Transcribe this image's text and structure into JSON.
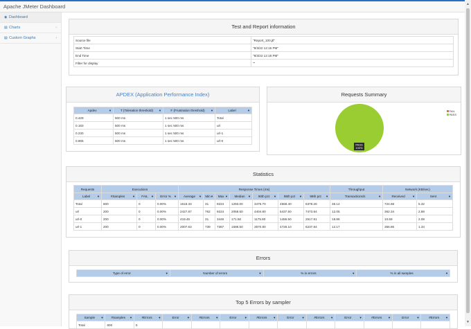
{
  "app": {
    "title": "Apache JMeter Dashboard"
  },
  "sidebar": {
    "items": [
      {
        "label": "Dashboard",
        "icon": "dashboard-icon"
      },
      {
        "label": "Charts",
        "icon": "bar-chart-icon"
      },
      {
        "label": "Custom Graphs",
        "icon": "bar-chart-icon"
      }
    ]
  },
  "info": {
    "title": "Test and Report information",
    "rows": [
      {
        "label": "Source file",
        "value": "\"Report_100.jtl\""
      },
      {
        "label": "Start Time",
        "value": "\"8/3/22 12:15 PM\""
      },
      {
        "label": "End Time",
        "value": "\"8/3/22 12:18 PM\""
      },
      {
        "label": "Filter for display",
        "value": "\"\""
      }
    ]
  },
  "apdex": {
    "title": "APDEX (Application Performance Index)",
    "headers": [
      "Apdex",
      "T (Toleration threshold)",
      "F (Frustration threshold)",
      "Label"
    ],
    "rows": [
      [
        "0.429",
        "500 ms",
        "1 sec 500 ms",
        "Total"
      ],
      [
        "0.183",
        "500 ms",
        "1 sec 500 ms",
        "url"
      ],
      [
        "0.230",
        "500 ms",
        "1 sec 500 ms",
        "url-1"
      ],
      [
        "0.865",
        "500 ms",
        "1 sec 500 ms",
        "url-0"
      ]
    ]
  },
  "requests_summary": {
    "title": "Requests Summary",
    "legend": [
      {
        "label": "FAIL",
        "color": "#f5663b"
      },
      {
        "label": "PASS",
        "color": "#9acd32"
      }
    ],
    "slice_label": "PASS",
    "slice_pct": "100%",
    "pass_color": "#9acd32"
  },
  "chart_data": {
    "type": "pie",
    "title": "Requests Summary",
    "categories": [
      "FAIL",
      "PASS"
    ],
    "values": [
      0,
      100
    ],
    "legend": "top-right"
  },
  "statistics": {
    "title": "Statistics",
    "groups": [
      "Requests",
      "Executions",
      "Response Times (ms)",
      "Throughput",
      "Network (KB/sec)"
    ],
    "headers": [
      "Label",
      "#Samples",
      "FAIL",
      "Error %",
      "Average",
      "Min",
      "Max",
      "Median",
      "90th pct",
      "95th pct",
      "99th pct",
      "Transactions/s",
      "Received",
      "Sent"
    ],
    "rows": [
      [
        "Total",
        "600",
        "0",
        "0.00%",
        "1618.33",
        "31",
        "9224",
        "1293.00",
        "3475.70",
        "4568.40",
        "6378.26",
        "36.14",
        "724.68",
        "5.32"
      ],
      [
        "url",
        "200",
        "0",
        "0.00%",
        "2427.87",
        "762",
        "9224",
        "2058.50",
        "4404.80",
        "5437.50",
        "7473.84",
        "12.05",
        "362.34",
        "2.88"
      ],
      [
        "url-0",
        "200",
        "0",
        "0.00%",
        "419.45",
        "31",
        "3446",
        "171.50",
        "1175.80",
        "1455.50",
        "2517.81",
        "18.86",
        "10.59",
        "2.08"
      ],
      [
        "url-1",
        "200",
        "0",
        "0.00%",
        "2007.63",
        "739",
        "7367",
        "1598.50",
        "3570.80",
        "4728.10",
        "6237.84",
        "12.17",
        "356.86",
        "1.34"
      ]
    ]
  },
  "errors": {
    "title": "Errors",
    "headers": [
      "Type of error",
      "Number of errors",
      "% in errors",
      "% in all samples"
    ]
  },
  "top5": {
    "title": "Top 5 Errors by sampler",
    "headers": [
      "Sample",
      "#Samples",
      "#Errors",
      "Error",
      "#Errors",
      "Error",
      "#Errors",
      "Error",
      "#Errors",
      "Error",
      "#Errors",
      "Error",
      "#Errors"
    ],
    "rows": [
      [
        "Total",
        "600",
        "0",
        "",
        "",
        "",
        "",
        "",
        "",
        "",
        "",
        "",
        ""
      ]
    ]
  }
}
